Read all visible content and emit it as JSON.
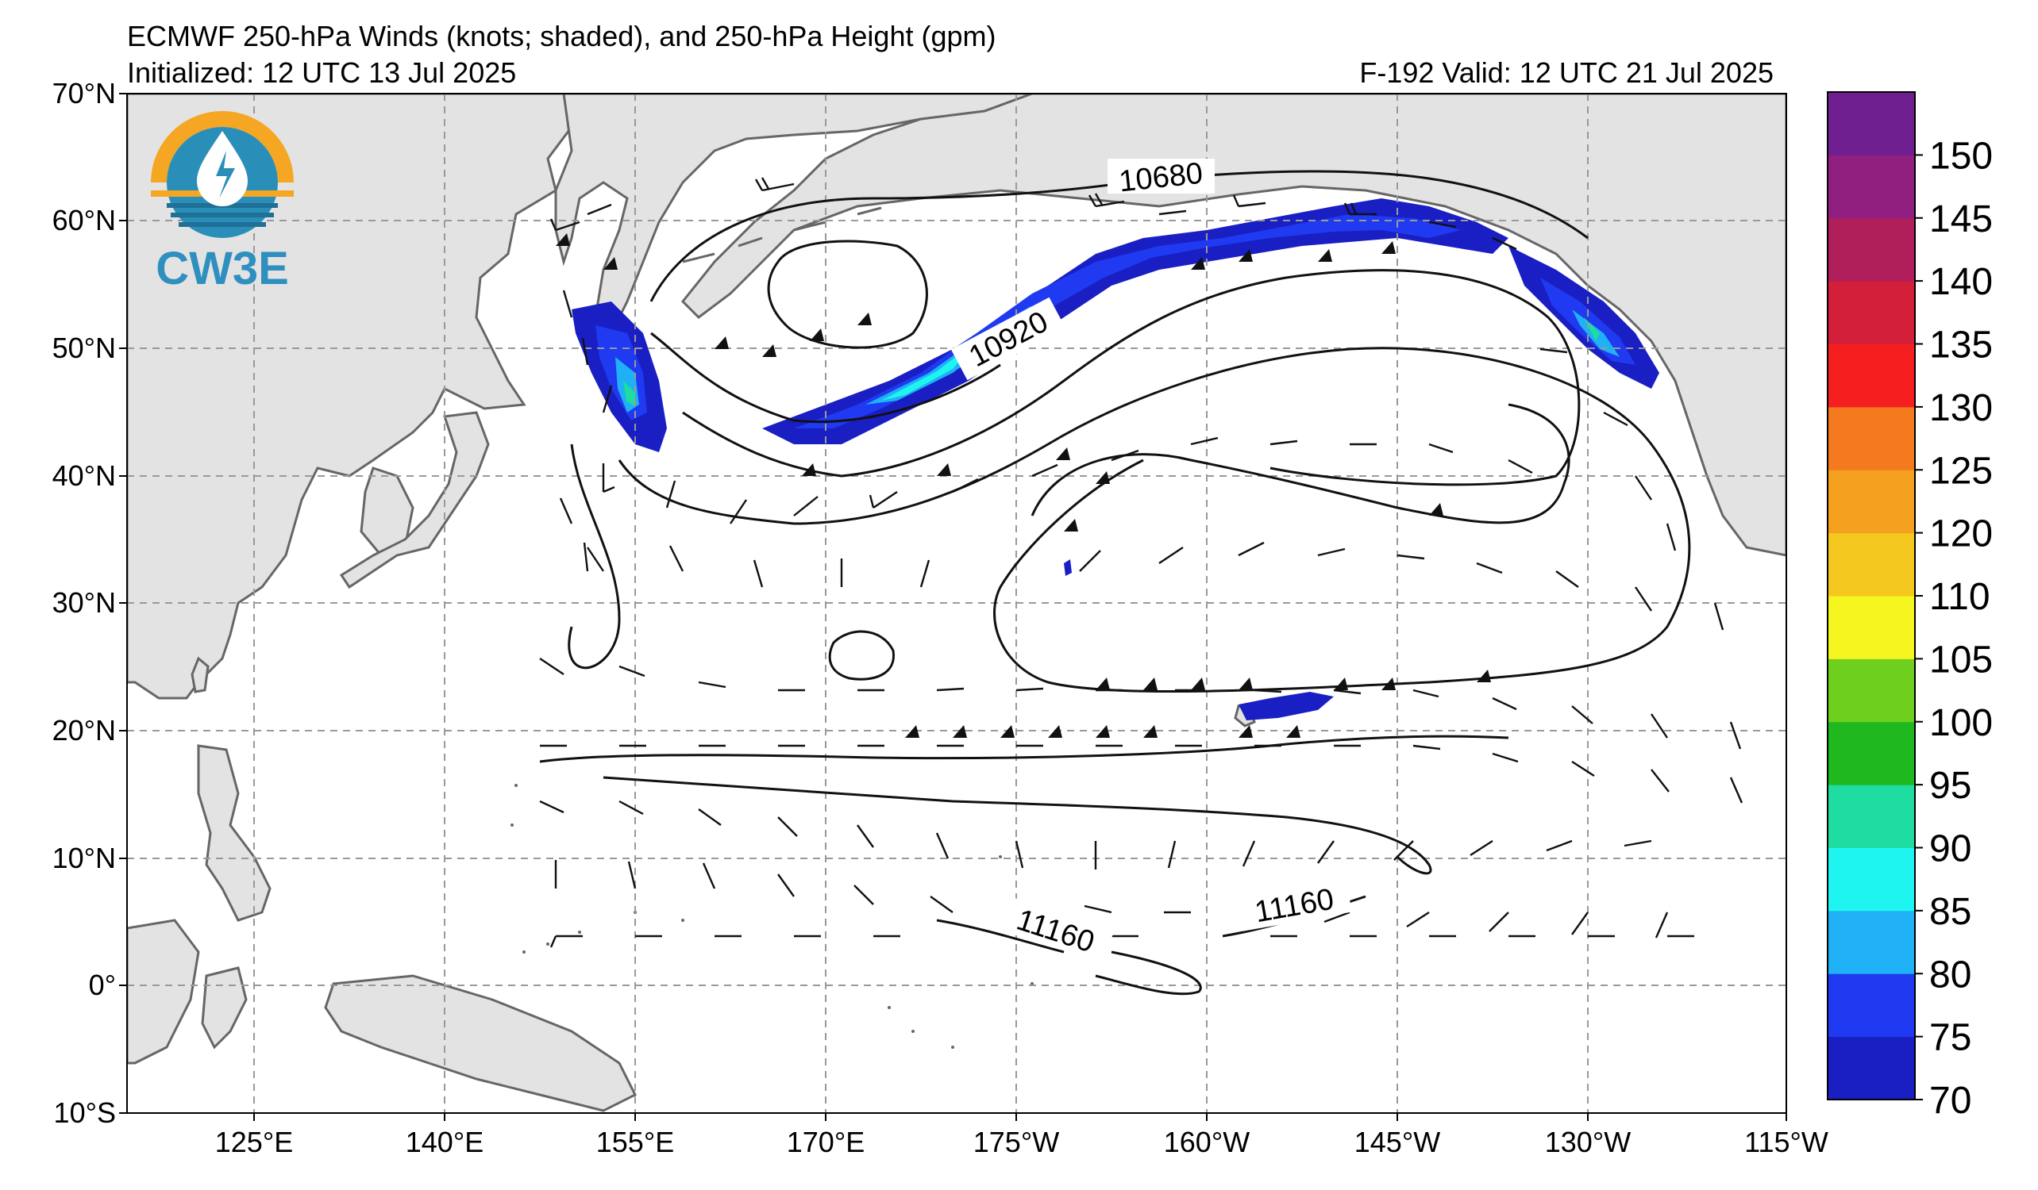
{
  "header": {
    "title": "ECMWF 250-hPa Winds (knots; shaded), and 250-hPa Height (gpm)",
    "initialized": "Initialized: 12 UTC 13 Jul 2025",
    "valid": "F-192  Valid: 12 UTC 21 Jul 2025"
  },
  "logo": {
    "text": "CW3E",
    "colors": {
      "ring": "#f5a623",
      "ocean": "#2a8fb8",
      "text": "#2f8fbf"
    }
  },
  "map": {
    "lat_labels": [
      "70°N",
      "60°N",
      "50°N",
      "40°N",
      "30°N",
      "20°N",
      "10°N",
      "0°",
      "10°S"
    ],
    "lon_labels": [
      "125°E",
      "140°E",
      "155°E",
      "170°E",
      "175°W",
      "160°W",
      "145°W",
      "130°W",
      "115°W"
    ],
    "contour_labels": [
      "10680",
      "10920",
      "11160",
      "11160"
    ],
    "colors": {
      "land": "#e3e3e3",
      "coast": "#666666",
      "grid": "#999999"
    }
  },
  "colorbar": {
    "ticks": [
      "70",
      "75",
      "80",
      "85",
      "90",
      "95",
      "100",
      "105",
      "110",
      "120",
      "125",
      "130",
      "135",
      "140",
      "145",
      "150"
    ],
    "colors": [
      "#1a1fc4",
      "#1f3af0",
      "#1fb0f5",
      "#1ff5f0",
      "#1fdca0",
      "#1fb81f",
      "#6fcf1f",
      "#f5f51f",
      "#f5c81f",
      "#f5a01f",
      "#f57a1f",
      "#f51f1f",
      "#d41f3a",
      "#b01f5a",
      "#901f80",
      "#701f90"
    ]
  }
}
